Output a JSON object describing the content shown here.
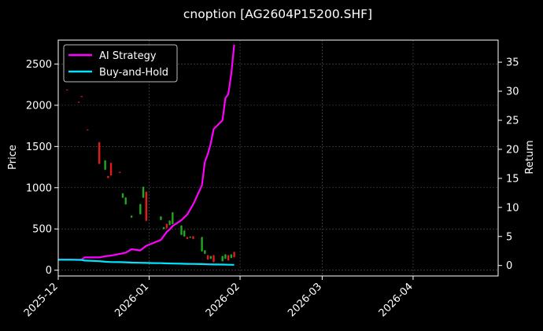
{
  "chart_data": {
    "type": "line",
    "title": "cnoption [AG2604P15200.SHF]",
    "xlabel": "",
    "ylabel": "Price",
    "y2label": "Return",
    "x_ticks": [
      "2025-12",
      "2026-01",
      "2026-02",
      "2026-03",
      "2026-04"
    ],
    "x_range": [
      "2025-12-01",
      "2026-04-30"
    ],
    "y_ticks": [
      0,
      500,
      1000,
      1500,
      2000,
      2500
    ],
    "y_range": [
      -70,
      2790
    ],
    "y2_ticks": [
      0,
      5,
      10,
      15,
      20,
      25,
      30,
      35
    ],
    "y2_range": [
      -1.8,
      38.8
    ],
    "grid": true,
    "legend_position": "top-left",
    "colors": {
      "background": "#000000",
      "up": "#21a821",
      "down": "#e31a1a",
      "ai_strategy": "#ff00ff",
      "buy_and_hold": "#00e5ff"
    },
    "candles": [
      {
        "date": "2025-12-04",
        "open": 2190,
        "close": 2185,
        "high": 2192,
        "low": 2183
      },
      {
        "date": "2025-12-08",
        "open": 2040,
        "close": 2036,
        "high": 2043,
        "low": 2033
      },
      {
        "date": "2025-12-09",
        "open": 2110,
        "close": 2104,
        "high": 2113,
        "low": 2100
      },
      {
        "date": "2025-12-11",
        "open": 1705,
        "close": 1700,
        "high": 1708,
        "low": 1697
      },
      {
        "date": "2025-12-15",
        "open": 1550,
        "close": 1290,
        "high": 1555,
        "low": 1285
      },
      {
        "date": "2025-12-17",
        "open": 1220,
        "close": 1330,
        "high": 1335,
        "low": 1215
      },
      {
        "date": "2025-12-18",
        "open": 1140,
        "close": 1120,
        "high": 1145,
        "low": 1115
      },
      {
        "date": "2025-12-19",
        "open": 1300,
        "close": 1150,
        "high": 1305,
        "low": 1145
      },
      {
        "date": "2025-12-22",
        "open": 1190,
        "close": 1185,
        "high": 1195,
        "low": 1180
      },
      {
        "date": "2025-12-23",
        "open": 880,
        "close": 930,
        "high": 935,
        "low": 875
      },
      {
        "date": "2025-12-24",
        "open": 800,
        "close": 880,
        "high": 885,
        "low": 795
      },
      {
        "date": "2025-12-26",
        "open": 640,
        "close": 660,
        "high": 665,
        "low": 635
      },
      {
        "date": "2025-12-29",
        "open": 680,
        "close": 800,
        "high": 805,
        "low": 675
      },
      {
        "date": "2025-12-30",
        "open": 880,
        "close": 1010,
        "high": 1015,
        "low": 875
      },
      {
        "date": "2025-12-31",
        "open": 950,
        "close": 600,
        "high": 955,
        "low": 595
      },
      {
        "date": "2026-01-05",
        "open": 610,
        "close": 650,
        "high": 655,
        "low": 605
      },
      {
        "date": "2026-01-06",
        "open": 500,
        "close": 520,
        "high": 525,
        "low": 495
      },
      {
        "date": "2026-01-07",
        "open": 560,
        "close": 510,
        "high": 565,
        "low": 505
      },
      {
        "date": "2026-01-08",
        "open": 550,
        "close": 600,
        "high": 605,
        "low": 545
      },
      {
        "date": "2026-01-09",
        "open": 560,
        "close": 700,
        "high": 705,
        "low": 555
      },
      {
        "date": "2026-01-12",
        "open": 430,
        "close": 540,
        "high": 545,
        "low": 425
      },
      {
        "date": "2026-01-13",
        "open": 410,
        "close": 480,
        "high": 485,
        "low": 405
      },
      {
        "date": "2026-01-14",
        "open": 400,
        "close": 380,
        "high": 405,
        "low": 375
      },
      {
        "date": "2026-01-15",
        "open": 395,
        "close": 405,
        "high": 410,
        "low": 390
      },
      {
        "date": "2026-01-16",
        "open": 410,
        "close": 380,
        "high": 415,
        "low": 375
      },
      {
        "date": "2026-01-19",
        "open": 230,
        "close": 400,
        "high": 405,
        "low": 225
      },
      {
        "date": "2026-01-20",
        "open": 200,
        "close": 240,
        "high": 245,
        "low": 195
      },
      {
        "date": "2026-01-21",
        "open": 180,
        "close": 130,
        "high": 185,
        "low": 125
      },
      {
        "date": "2026-01-22",
        "open": 140,
        "close": 170,
        "high": 175,
        "low": 135
      },
      {
        "date": "2026-01-23",
        "open": 180,
        "close": 100,
        "high": 185,
        "low": 95
      },
      {
        "date": "2026-01-26",
        "open": 110,
        "close": 170,
        "high": 175,
        "low": 105
      },
      {
        "date": "2026-01-27",
        "open": 140,
        "close": 190,
        "high": 195,
        "low": 135
      },
      {
        "date": "2026-01-28",
        "open": 180,
        "close": 120,
        "high": 185,
        "low": 115
      },
      {
        "date": "2026-01-29",
        "open": 150,
        "close": 190,
        "high": 195,
        "low": 145
      },
      {
        "date": "2026-01-30",
        "open": 220,
        "close": 160,
        "high": 225,
        "low": 155
      }
    ],
    "series": [
      {
        "name": "AI Strategy",
        "axis": "right",
        "x": [
          "2025-12-01",
          "2025-12-05",
          "2025-12-09",
          "2025-12-10",
          "2025-12-15",
          "2025-12-17",
          "2025-12-19",
          "2025-12-22",
          "2025-12-24",
          "2025-12-26",
          "2025-12-29",
          "2025-12-31",
          "2026-01-02",
          "2026-01-05",
          "2026-01-07",
          "2026-01-08",
          "2026-01-09",
          "2026-01-12",
          "2026-01-14",
          "2026-01-16",
          "2026-01-19",
          "2026-01-20",
          "2026-01-21",
          "2026-01-22",
          "2026-01-23",
          "2026-01-26",
          "2026-01-27",
          "2026-01-28",
          "2026-01-29",
          "2026-01-30"
        ],
        "y": [
          1.0,
          1.0,
          1.0,
          1.4,
          1.4,
          1.6,
          1.7,
          2.0,
          2.2,
          2.8,
          2.6,
          3.4,
          3.8,
          4.4,
          5.8,
          6.2,
          6.8,
          7.8,
          8.8,
          10.5,
          13.8,
          17.8,
          19.2,
          21.0,
          23.5,
          25.0,
          28.8,
          29.5,
          33.0,
          38.0
        ]
      },
      {
        "name": "Buy-and-Hold",
        "axis": "right",
        "x": [
          "2025-12-01",
          "2025-12-05",
          "2025-12-09",
          "2025-12-10",
          "2025-12-15",
          "2025-12-17",
          "2025-12-19",
          "2025-12-22",
          "2025-12-24",
          "2025-12-26",
          "2025-12-29",
          "2025-12-31",
          "2026-01-02",
          "2026-01-05",
          "2026-01-07",
          "2026-01-09",
          "2026-01-12",
          "2026-01-14",
          "2026-01-16",
          "2026-01-19",
          "2026-01-21",
          "2026-01-23",
          "2026-01-26",
          "2026-01-28",
          "2026-01-30"
        ],
        "y": [
          1.0,
          1.0,
          0.95,
          0.85,
          0.75,
          0.65,
          0.6,
          0.58,
          0.55,
          0.5,
          0.48,
          0.45,
          0.42,
          0.4,
          0.36,
          0.34,
          0.31,
          0.29,
          0.27,
          0.24,
          0.2,
          0.18,
          0.16,
          0.14,
          0.12
        ]
      }
    ]
  }
}
